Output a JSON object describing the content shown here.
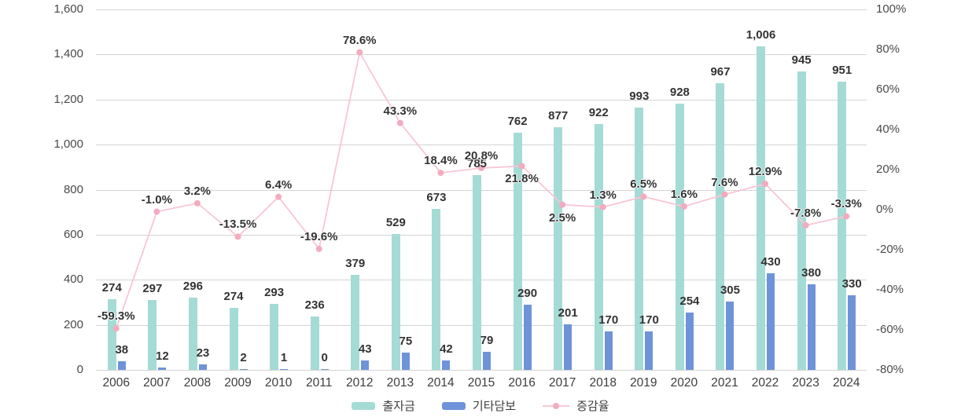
{
  "chart_data": {
    "type": "bar",
    "subtype": "grouped-bars-with-line-overlay",
    "title": "",
    "categories": [
      "2006",
      "2007",
      "2008",
      "2009",
      "2010",
      "2011",
      "2012",
      "2013",
      "2014",
      "2015",
      "2016",
      "2017",
      "2018",
      "2019",
      "2020",
      "2021",
      "2022",
      "2023",
      "2024"
    ],
    "series": [
      {
        "name": "출자금",
        "type": "bar",
        "color": "#a5dbd5",
        "values": [
          274,
          297,
          296,
          274,
          293,
          236,
          379,
          529,
          673,
          785,
          762,
          877,
          922,
          993,
          928,
          967,
          1006,
          945,
          951
        ],
        "labels": [
          "274",
          "297",
          "296",
          "274",
          "293",
          "236",
          "379",
          "529",
          "673",
          "785",
          "762",
          "877",
          "922",
          "993",
          "928",
          "967",
          "1,006",
          "945",
          "951"
        ]
      },
      {
        "name": "기타담보",
        "type": "bar",
        "color": "#6e93d8",
        "values": [
          38,
          12,
          23,
          2,
          1,
          0,
          43,
          75,
          42,
          79,
          290,
          201,
          170,
          170,
          254,
          305,
          430,
          380,
          330
        ],
        "labels": [
          "38",
          "12",
          "23",
          "2",
          "1",
          "0",
          "43",
          "75",
          "42",
          "79",
          "290",
          "201",
          "170",
          "170",
          "254",
          "305",
          "430",
          "380",
          "330"
        ]
      },
      {
        "name": "증감율",
        "type": "line",
        "color": "#f8c6d3",
        "marker_color": "#f3abc0",
        "axis": "right",
        "values": [
          -59.3,
          -1.0,
          3.2,
          -13.5,
          6.4,
          -19.6,
          78.6,
          43.3,
          18.4,
          20.8,
          21.8,
          2.5,
          1.3,
          6.5,
          1.6,
          7.6,
          12.9,
          -7.8,
          -3.3
        ],
        "labels": [
          "-59.3%",
          "-1.0%",
          "3.2%",
          "-13.5%",
          "6.4%",
          "-19.6%",
          "78.6%",
          "43.3%",
          "18.4%",
          "20.8%",
          "21.8%",
          "2.5%",
          "1.3%",
          "6.5%",
          "1.6%",
          "7.6%",
          "12.9%",
          "-7.8%",
          "-3.3%"
        ]
      }
    ],
    "left_axis": {
      "min": 0,
      "max": 1600,
      "tick_step": 200,
      "ticks": [
        "1,600",
        "1,400",
        "1,200",
        "1,000",
        "800",
        "600",
        "400",
        "200",
        "0"
      ]
    },
    "right_axis": {
      "min": -80,
      "max": 100,
      "tick_step": 20,
      "ticks": [
        "100%",
        "80%",
        "60%",
        "40%",
        "20%",
        "0%",
        "-20%",
        "-40%",
        "-60%",
        "-80%"
      ]
    },
    "legend": {
      "position": "bottom",
      "items": [
        "출자금",
        "기타담보",
        "증감율"
      ]
    },
    "layout_hints": {
      "grid": "horizontal-only",
      "grid_color": "#d4d4d4",
      "first_bar_pixel_height_equals_sum_of_both_bar_series": true,
      "line_label_below_point_indices": [
        10,
        11
      ]
    }
  }
}
